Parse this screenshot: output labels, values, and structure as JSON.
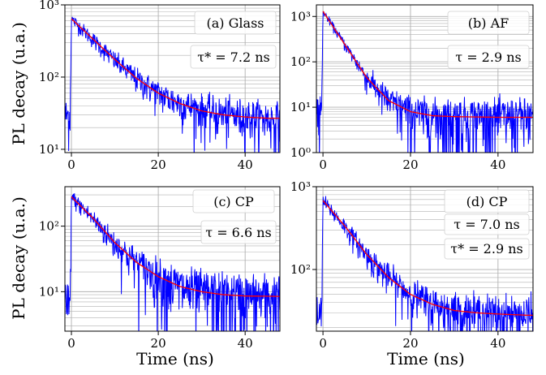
{
  "figure": {
    "ylabel": "PL decay (u.a.)",
    "xlabel": "Time (ns)"
  },
  "colors": {
    "data": "#0000ff",
    "fit": "#ff0000",
    "grid": "#b0b0b0"
  },
  "chart_data": [
    {
      "type": "line",
      "panel_label": "(a) Glass",
      "tau_text": "τ* = 7.2 ns",
      "xlim": [
        -1.5,
        48
      ],
      "ylim": [
        9,
        1000
      ],
      "yscale": "log",
      "xticks": [
        0,
        20,
        40
      ],
      "xtick_labels": [
        "0",
        "20",
        "40"
      ],
      "yticks": [
        10,
        100,
        1000
      ],
      "ytick_labels": [
        "10¹",
        "10²",
        "10³"
      ],
      "grid": true,
      "ylabel": "PL decay (u.a.)",
      "xlabel": "",
      "series": [
        {
          "kind": "data",
          "x": [
            -1,
            0,
            5,
            10,
            15,
            20,
            25,
            30,
            35,
            40,
            45,
            47
          ],
          "y": [
            30,
            640,
            330,
            170,
            95,
            60,
            44,
            35,
            31,
            29,
            27,
            26
          ]
        },
        {
          "kind": "fit",
          "x": [
            0,
            5,
            10,
            15,
            20,
            25,
            30,
            35,
            40,
            45,
            47
          ],
          "y": [
            640,
            335,
            175,
            96,
            60,
            43,
            34,
            30,
            28,
            27,
            27
          ]
        }
      ]
    },
    {
      "type": "line",
      "panel_label": "(b) AF",
      "tau_text": "τ = 2.9 ns",
      "xlim": [
        -1.5,
        48
      ],
      "ylim": [
        1,
        1800
      ],
      "yscale": "log",
      "xticks": [
        0,
        20,
        40
      ],
      "xtick_labels": [
        "0",
        "20",
        "40"
      ],
      "yticks": [
        1,
        10,
        100,
        1000
      ],
      "ytick_labels": [
        "10⁰",
        "10¹",
        "10²",
        "10³"
      ],
      "grid": true,
      "ylabel": "",
      "xlabel": "",
      "series": [
        {
          "kind": "data",
          "x": [
            -1,
            0,
            5,
            10,
            15,
            20,
            25,
            30,
            40,
            47
          ],
          "y": [
            8,
            1300,
            240,
            45,
            14,
            8,
            6.5,
            6.5,
            6.5,
            6.5
          ]
        },
        {
          "kind": "fit",
          "x": [
            0,
            5,
            10,
            15,
            20,
            25,
            30,
            40,
            47
          ],
          "y": [
            1300,
            240,
            45,
            14,
            8,
            6.5,
            6.2,
            6,
            6
          ]
        }
      ]
    },
    {
      "type": "line",
      "panel_label": "(c) CP",
      "tau_text": "τ = 6.6 ns",
      "xlim": [
        -1.5,
        48
      ],
      "ylim": [
        2.5,
        400
      ],
      "yscale": "log",
      "xticks": [
        0,
        20,
        40
      ],
      "xtick_labels": [
        "0",
        "20",
        "40"
      ],
      "yticks": [
        10,
        100
      ],
      "ytick_labels": [
        "10¹",
        "10²"
      ],
      "grid": true,
      "ylabel": "PL decay (u.a.)",
      "xlabel": "Time (ns)",
      "series": [
        {
          "kind": "data",
          "x": [
            -1,
            0,
            5,
            10,
            15,
            20,
            25,
            30,
            35,
            40,
            47
          ],
          "y": [
            6,
            280,
            130,
            55,
            28,
            17,
            12,
            10,
            9,
            8.5,
            8.5
          ]
        },
        {
          "kind": "fit",
          "x": [
            0,
            5,
            10,
            15,
            20,
            25,
            30,
            35,
            40,
            47
          ],
          "y": [
            280,
            132,
            56,
            28,
            17,
            12,
            10,
            9,
            8.6,
            8.5
          ]
        }
      ]
    },
    {
      "type": "line",
      "panel_label": "(d) CP",
      "tau_text": "τ = 7.0 ns",
      "tau2_text": "τ* = 2.9 ns",
      "xlim": [
        -1.5,
        48
      ],
      "ylim": [
        18,
        1000
      ],
      "yscale": "log",
      "xticks": [
        0,
        20,
        40
      ],
      "xtick_labels": [
        "0",
        "20",
        "40"
      ],
      "yticks": [
        100,
        1000
      ],
      "ytick_labels": [
        "10²",
        "10³"
      ],
      "grid": true,
      "ylabel": "",
      "xlabel": "Time (ns)",
      "series": [
        {
          "kind": "data",
          "x": [
            -1,
            0,
            5,
            10,
            15,
            20,
            25,
            30,
            35,
            40,
            47
          ],
          "y": [
            28,
            680,
            330,
            150,
            80,
            50,
            38,
            32,
            30,
            29,
            28
          ]
        },
        {
          "kind": "fit",
          "x": [
            0,
            5,
            10,
            15,
            20,
            25,
            30,
            35,
            40,
            47
          ],
          "y": [
            680,
            335,
            152,
            80,
            50,
            38,
            32,
            30,
            29,
            28
          ]
        }
      ]
    }
  ]
}
